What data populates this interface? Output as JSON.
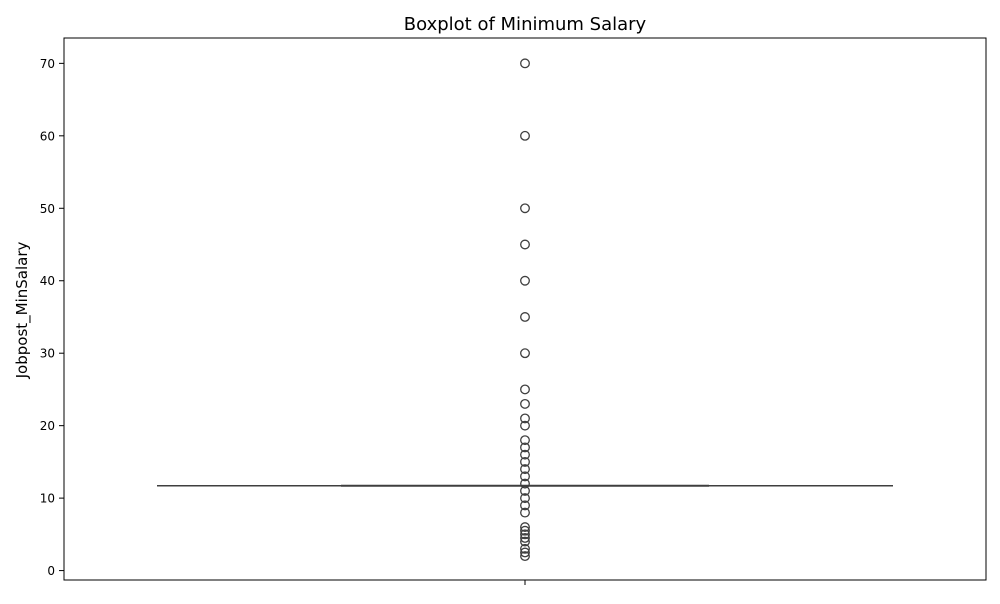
{
  "chart_data": {
    "type": "box",
    "title": "Boxplot of Minimum Salary",
    "xlabel": "",
    "ylabel": "Jobpost_MinSalary",
    "ylim": [
      -1.3,
      73.5
    ],
    "yticks": [
      0,
      10,
      20,
      30,
      40,
      50,
      60,
      70
    ],
    "grid": false,
    "box": {
      "q1": 11.7,
      "median": 11.7,
      "q3": 11.7,
      "whisker_low": 11.7,
      "whisker_high": 11.7
    },
    "outliers": [
      70,
      60,
      50,
      45,
      40,
      35,
      30,
      25,
      23,
      21,
      20,
      18,
      17,
      16,
      15,
      14,
      13,
      12,
      11,
      10,
      9,
      8,
      6,
      5.5,
      5,
      4.5,
      4,
      3,
      2.5,
      2
    ],
    "colors": {
      "box_line": "#3f3f3f",
      "outlier_edge": "#3f3f3f",
      "axes": "#000000"
    }
  }
}
